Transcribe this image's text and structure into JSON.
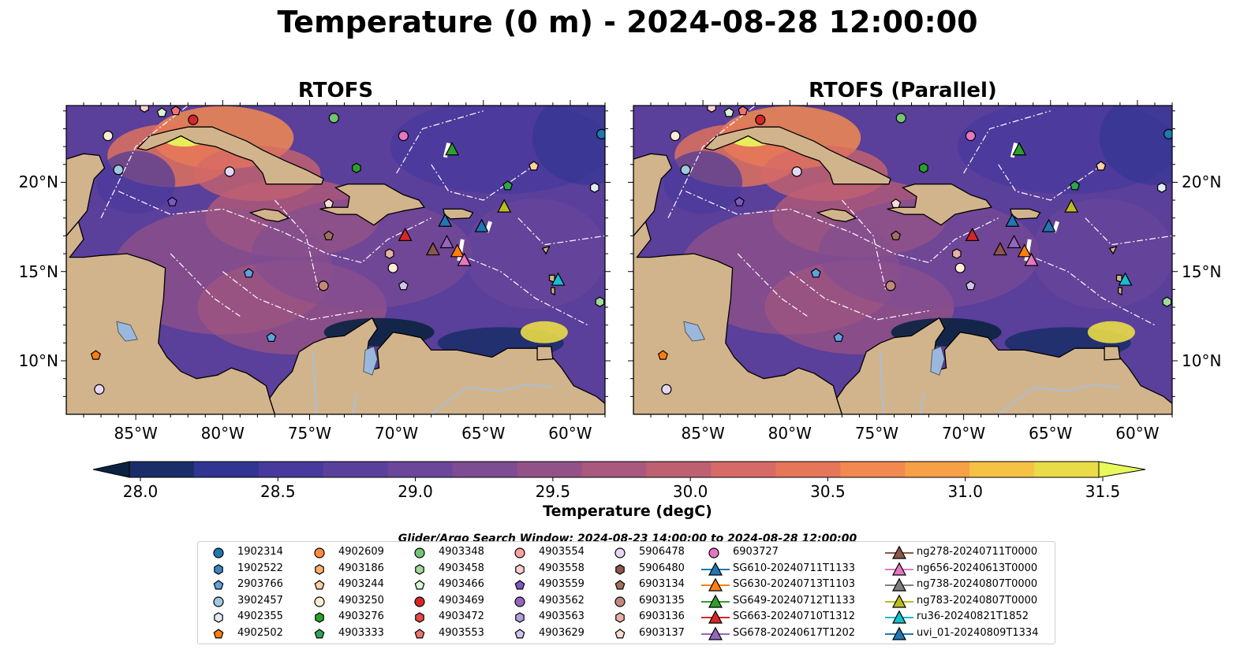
{
  "title": "Temperature (0 m) - 2024-08-28 12:00:00",
  "panels": [
    {
      "title": "RTOFS"
    },
    {
      "title": "RTOFS (Parallel)"
    }
  ],
  "lon_ticks": [
    "85°W",
    "80°W",
    "75°W",
    "70°W",
    "65°W",
    "60°W"
  ],
  "lon_values": [
    -85,
    -80,
    -75,
    -70,
    -65,
    -60
  ],
  "lat_ticks": [
    "20°N",
    "15°N",
    "10°N"
  ],
  "lat_values": [
    20,
    15,
    10
  ],
  "extent": {
    "lon_min": -89,
    "lon_max": -58,
    "lat_min": 7,
    "lat_max": 24.3
  },
  "colorbar": {
    "label": "Temperature (degC)",
    "ticks": [
      "28.0",
      "28.5",
      "29.0",
      "29.5",
      "30.0",
      "30.5",
      "31.0",
      "31.5"
    ],
    "vmin": 28.0,
    "vmax": 31.5,
    "extend": "both",
    "colors": [
      "#0b2341",
      "#192e68",
      "#2f3591",
      "#483a9c",
      "#5a409d",
      "#6b469a",
      "#7e4c92",
      "#935287",
      "#a8597d",
      "#bf6072",
      "#d66a66",
      "#e6765a",
      "#f18950",
      "#f7a146",
      "#f6c244",
      "#eadc47",
      "#e8fa5b"
    ]
  },
  "search_window": "Glider/Argo Search Window: 2024-08-23 14:00:00 to 2024-08-28 12:00:00",
  "map_colors": {
    "land": "#d2b48c",
    "lake": "#9ab8dd",
    "river": "#a6bfdc",
    "coast": "#000000",
    "eez": "#ffffff"
  },
  "legend": [
    {
      "label": "1902314",
      "marker": "circle",
      "color": "#1f77b4"
    },
    {
      "label": "1902522",
      "marker": "hexagon",
      "color": "#3a86c5"
    },
    {
      "label": "2903766",
      "marker": "pentagon",
      "color": "#5fa2dd"
    },
    {
      "label": "3902457",
      "marker": "circle",
      "color": "#9ecae1"
    },
    {
      "label": "4902355",
      "marker": "hexagon",
      "color": "#deebf7"
    },
    {
      "label": "4902502",
      "marker": "pentagon",
      "color": "#ff7f0e"
    },
    {
      "label": "4902609",
      "marker": "circle",
      "color": "#fd8d3c"
    },
    {
      "label": "4903186",
      "marker": "hexagon",
      "color": "#fdae6b"
    },
    {
      "label": "4903244",
      "marker": "pentagon",
      "color": "#fdd0a2"
    },
    {
      "label": "4903250",
      "marker": "circle",
      "color": "#feecd6"
    },
    {
      "label": "4903276",
      "marker": "hexagon",
      "color": "#2ca02c"
    },
    {
      "label": "4903333",
      "marker": "pentagon",
      "color": "#31a354"
    },
    {
      "label": "4903348",
      "marker": "circle",
      "color": "#74c476"
    },
    {
      "label": "4903458",
      "marker": "hexagon",
      "color": "#a1d99b"
    },
    {
      "label": "4903466",
      "marker": "pentagon",
      "color": "#d9f7d0"
    },
    {
      "label": "4903469",
      "marker": "circle",
      "color": "#d62728"
    },
    {
      "label": "4903472",
      "marker": "hexagon",
      "color": "#e34a4a"
    },
    {
      "label": "4903553",
      "marker": "pentagon",
      "color": "#f07272"
    },
    {
      "label": "4903554",
      "marker": "circle",
      "color": "#f7a3a3"
    },
    {
      "label": "4903558",
      "marker": "hexagon",
      "color": "#fccfcf"
    },
    {
      "label": "4903559",
      "marker": "pentagon",
      "color": "#7e57c2"
    },
    {
      "label": "4903562",
      "marker": "circle",
      "color": "#9467bd"
    },
    {
      "label": "4903563",
      "marker": "hexagon",
      "color": "#b39ddb"
    },
    {
      "label": "4903629",
      "marker": "pentagon",
      "color": "#d1c4e9"
    },
    {
      "label": "5906478",
      "marker": "circle",
      "color": "#e5d8f5"
    },
    {
      "label": "5906480",
      "marker": "hexagon",
      "color": "#8c564b"
    },
    {
      "label": "6903134",
      "marker": "pentagon",
      "color": "#a0705f"
    },
    {
      "label": "6903135",
      "marker": "circle",
      "color": "#c08a7a"
    },
    {
      "label": "6903136",
      "marker": "hexagon",
      "color": "#e5b3a5"
    },
    {
      "label": "6903137",
      "marker": "pentagon",
      "color": "#f8dcd2"
    },
    {
      "label": "6903727",
      "marker": "circle",
      "color": "#e377c2"
    },
    {
      "label": "SG610-20240711T1133",
      "marker": "triangle",
      "color": "#1f77b4"
    },
    {
      "label": "SG630-20240713T1103",
      "marker": "triangle",
      "color": "#ff7f0e"
    },
    {
      "label": "SG649-20240712T1133",
      "marker": "triangle",
      "color": "#2ca02c"
    },
    {
      "label": "SG663-20240710T1312",
      "marker": "triangle",
      "color": "#d62728"
    },
    {
      "label": "SG678-20240617T1202",
      "marker": "triangle",
      "color": "#9467bd"
    },
    {
      "label": "ng278-20240711T0000",
      "marker": "triangle",
      "color": "#8c564b"
    },
    {
      "label": "ng656-20240613T0000",
      "marker": "triangle",
      "color": "#e377c2"
    },
    {
      "label": "ng738-20240807T0000",
      "marker": "triangle",
      "color": "#7f7f7f"
    },
    {
      "label": "ng783-20240807T0000",
      "marker": "triangle",
      "color": "#bcbd22"
    },
    {
      "label": "ru36-20240821T1852",
      "marker": "triangle",
      "color": "#17becf"
    },
    {
      "label": "uvi_01-20240809T1334",
      "marker": "triangle",
      "color": "#1f77b4"
    }
  ],
  "floats": [
    {
      "label": "1902314",
      "lon": -58.2,
      "lat": 22.7
    },
    {
      "label": "4902355",
      "lon": -58.6,
      "lat": 19.7
    },
    {
      "label": "4903553",
      "lon": -82.7,
      "lat": 24.0
    },
    {
      "label": "4903466",
      "lon": -83.5,
      "lat": 23.9
    },
    {
      "label": "4903558",
      "lon": -84.5,
      "lat": 24.2
    },
    {
      "label": "4903469",
      "lon": -81.7,
      "lat": 23.5
    },
    {
      "label": "4903348",
      "lon": -73.6,
      "lat": 23.6
    },
    {
      "label": "6903727",
      "lon": -69.6,
      "lat": 22.6
    },
    {
      "label": "4903250",
      "lon": -86.6,
      "lat": 22.6
    },
    {
      "label": "3902457",
      "lon": -86.0,
      "lat": 20.7
    },
    {
      "label": "5906478",
      "lon": -79.6,
      "lat": 20.6
    },
    {
      "label": "4903559",
      "lon": -82.9,
      "lat": 18.9
    },
    {
      "label": "4903276",
      "lon": -72.3,
      "lat": 20.8
    },
    {
      "label": "4903333",
      "lon": -63.6,
      "lat": 19.8
    },
    {
      "label": "4903244",
      "lon": -62.1,
      "lat": 20.9
    },
    {
      "label": "6903137",
      "lon": -73.9,
      "lat": 18.8
    },
    {
      "label": "6903134",
      "lon": -73.9,
      "lat": 17.0
    },
    {
      "label": "6903136",
      "lon": -70.4,
      "lat": 16.0
    },
    {
      "label": "4903250",
      "lon": -70.2,
      "lat": 15.2
    },
    {
      "label": "2903766",
      "lon": -78.5,
      "lat": 14.9
    },
    {
      "label": "6903135",
      "lon": -74.2,
      "lat": 14.2
    },
    {
      "label": "4903629",
      "lon": -69.6,
      "lat": 14.2
    },
    {
      "label": "4903458",
      "lon": -58.3,
      "lat": 13.3
    },
    {
      "label": "2903766",
      "lon": -77.2,
      "lat": 11.3
    },
    {
      "label": "4902502",
      "lon": -87.3,
      "lat": 10.3
    },
    {
      "label": "5906478",
      "lon": -87.1,
      "lat": 8.4
    }
  ],
  "gliders": [
    {
      "label": "SG649-20240712T1133",
      "lon": -66.8,
      "lat": 21.8
    },
    {
      "label": "ng783-20240807T0000",
      "lon": -63.8,
      "lat": 18.6
    },
    {
      "label": "uvi_01-20240809T1334",
      "lon": -67.2,
      "lat": 17.8
    },
    {
      "label": "SG610-20240711T1133",
      "lon": -65.1,
      "lat": 17.5
    },
    {
      "label": "SG663-20240710T1312",
      "lon": -69.5,
      "lat": 17.0
    },
    {
      "label": "ng278-20240711T0000",
      "lon": -67.9,
      "lat": 16.2
    },
    {
      "label": "SG678-20240617T1202",
      "lon": -67.1,
      "lat": 16.6
    },
    {
      "label": "SG630-20240713T1103",
      "lon": -66.5,
      "lat": 16.1
    },
    {
      "label": "ng656-20240613T0000",
      "lon": -66.1,
      "lat": 15.6
    },
    {
      "label": "ru36-20240821T1852",
      "lon": -60.7,
      "lat": 14.5
    }
  ]
}
